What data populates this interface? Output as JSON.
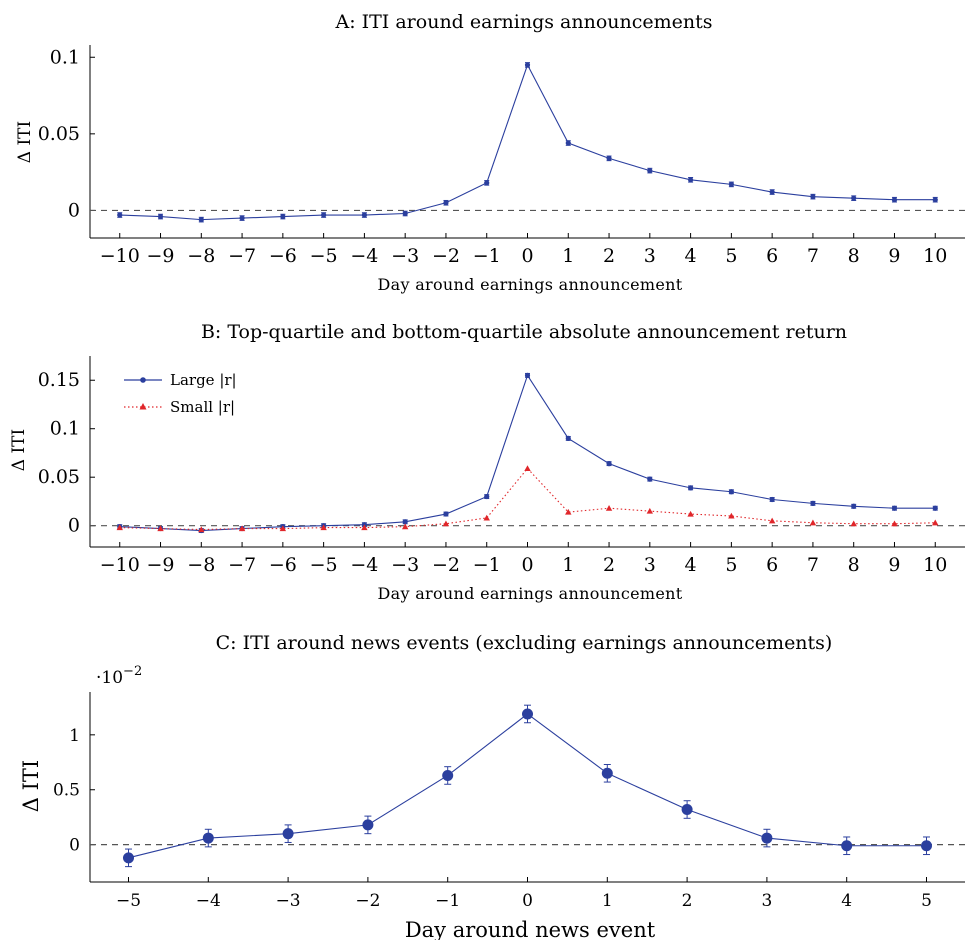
{
  "chart_data": [
    {
      "type": "line",
      "title": "A: ITI around earnings announcements",
      "xlabel": "Day around earnings announcement",
      "ylabel": "Δ ITI",
      "x": [
        -10,
        -9,
        -8,
        -7,
        -6,
        -5,
        -4,
        -3,
        -2,
        -1,
        0,
        1,
        2,
        3,
        4,
        5,
        6,
        7,
        8,
        9,
        10
      ],
      "x_ticks": [
        "−10",
        "−9",
        "−8",
        "−7",
        "−6",
        "−5",
        "−4",
        "−3",
        "−2",
        "−1",
        "0",
        "1",
        "2",
        "3",
        "4",
        "5",
        "6",
        "7",
        "8",
        "9",
        "10"
      ],
      "y_ticks": [
        {
          "v": 0,
          "label": "0"
        },
        {
          "v": 0.05,
          "label": "0.05"
        },
        {
          "v": 0.1,
          "label": "0.1"
        }
      ],
      "ylim": [
        -0.018,
        0.108
      ],
      "reference_line": 0,
      "series": [
        {
          "color": "#2b3f9e",
          "marker": "circle",
          "values": [
            -0.003,
            -0.004,
            -0.006,
            -0.005,
            -0.004,
            -0.003,
            -0.003,
            -0.002,
            0.005,
            0.018,
            0.095,
            0.044,
            0.034,
            0.026,
            0.02,
            0.017,
            0.012,
            0.009,
            0.008,
            0.007,
            0.007
          ],
          "error": 0.0015
        }
      ]
    },
    {
      "type": "line",
      "title": "B: Top-quartile and bottom-quartile absolute announcement return",
      "xlabel": "Day around earnings announcement",
      "ylabel": "Δ ITI",
      "x": [
        -10,
        -9,
        -8,
        -7,
        -6,
        -5,
        -4,
        -3,
        -2,
        -1,
        0,
        1,
        2,
        3,
        4,
        5,
        6,
        7,
        8,
        9,
        10
      ],
      "x_ticks": [
        "−10",
        "−9",
        "−8",
        "−7",
        "−6",
        "−5",
        "−4",
        "−3",
        "−2",
        "−1",
        "0",
        "1",
        "2",
        "3",
        "4",
        "5",
        "6",
        "7",
        "8",
        "9",
        "10"
      ],
      "y_ticks": [
        {
          "v": 0,
          "label": "0"
        },
        {
          "v": 0.05,
          "label": "0.05"
        },
        {
          "v": 0.1,
          "label": "0.1"
        },
        {
          "v": 0.15,
          "label": "0.15"
        }
      ],
      "ylim": [
        -0.022,
        0.175
      ],
      "reference_line": 0,
      "legend_position": "top-left",
      "series": [
        {
          "name": "Large |r|",
          "color": "#2b3f9e",
          "marker": "circle",
          "dash": "solid",
          "values": [
            -0.001,
            -0.003,
            -0.005,
            -0.003,
            -0.001,
            0.0,
            0.001,
            0.004,
            0.012,
            0.03,
            0.155,
            0.09,
            0.064,
            0.048,
            0.039,
            0.035,
            0.027,
            0.023,
            0.02,
            0.018,
            0.018
          ],
          "error": 0.002
        },
        {
          "name": "Small |r|",
          "color": "#e0262a",
          "marker": "triangle",
          "dash": "dotted",
          "values": [
            -0.002,
            -0.003,
            -0.004,
            -0.003,
            -0.003,
            -0.002,
            -0.002,
            -0.001,
            0.002,
            0.008,
            0.059,
            0.014,
            0.018,
            0.015,
            0.012,
            0.01,
            0.005,
            0.003,
            0.002,
            0.002,
            0.003
          ],
          "error": 0
        }
      ]
    },
    {
      "type": "line",
      "title": "C: ITI around news events (excluding earnings announcements)",
      "xlabel": "Day around news event",
      "ylabel": "Δ ITI",
      "y_multiplier": "·10",
      "y_multiplier_exp": "−2",
      "x": [
        -5,
        -4,
        -3,
        -2,
        -1,
        0,
        1,
        2,
        3,
        4,
        5
      ],
      "x_ticks": [
        "−5",
        "−4",
        "−3",
        "−2",
        "−1",
        "0",
        "1",
        "2",
        "3",
        "4",
        "5"
      ],
      "y_ticks": [
        {
          "v": 0,
          "label": "0"
        },
        {
          "v": 0.5,
          "label": "0.5"
        },
        {
          "v": 1,
          "label": "1"
        }
      ],
      "ylim": [
        -0.34,
        1.39
      ],
      "reference_line": 0,
      "series": [
        {
          "color": "#2b3f9e",
          "marker": "circle-large",
          "values": [
            -0.12,
            0.06,
            0.1,
            0.18,
            0.63,
            1.19,
            0.65,
            0.32,
            0.06,
            -0.01,
            -0.01
          ],
          "error": 0.08
        }
      ]
    }
  ]
}
